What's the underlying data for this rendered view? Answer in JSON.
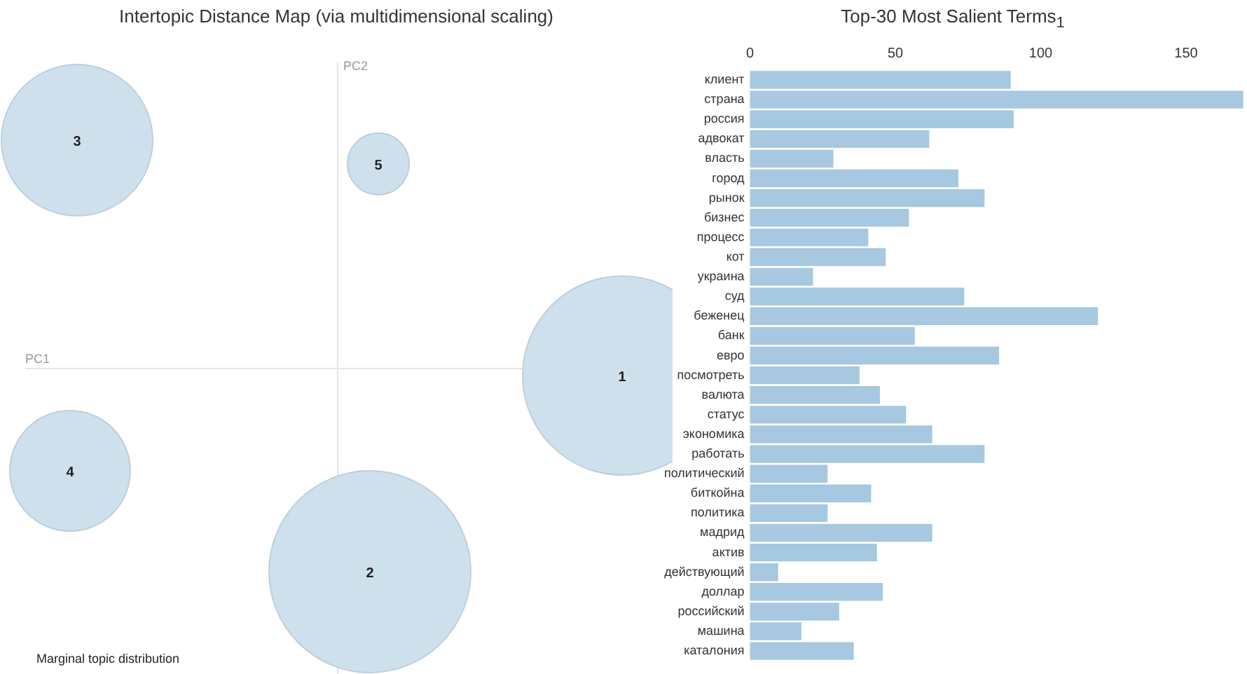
{
  "chart_data": [
    {
      "type": "other",
      "title": "Intertopic Distance Map (via multidimensional scaling)",
      "xlabel": "PC1",
      "ylabel": "PC2",
      "annotations": [
        "1",
        "2",
        "3",
        "4",
        "5",
        "Marginal topic distribution"
      ]
    },
    {
      "type": "bar",
      "orientation": "horizontal",
      "title": "Top-30 Most Salient Terms$_{1}$",
      "legend": false,
      "grid": false,
      "categories": [
        "клиент",
        "страна",
        "россия",
        "адвокат",
        "власть",
        "город",
        "рынок",
        "бизнес",
        "процесс",
        "кот",
        "украина",
        "суд",
        "беженец",
        "банк",
        "евро",
        "посмотреть",
        "валюта",
        "статус",
        "экономика",
        "работать",
        "политический",
        "биткойна",
        "политика",
        "мадрид",
        "актив",
        "действующий",
        "доллар",
        "российский",
        "машина",
        "каталония"
      ],
      "values": [
        90,
        170,
        91,
        62,
        29,
        72,
        81,
        55,
        41,
        47,
        22,
        74,
        120,
        57,
        86,
        38,
        45,
        54,
        63,
        81,
        27,
        42,
        27,
        63,
        44,
        10,
        46,
        31,
        18,
        36
      ],
      "color": "#a6c8e0",
      "xlim": [
        0,
        170
      ],
      "xticks": [
        0,
        50,
        100,
        150
      ]
    }
  ]
}
